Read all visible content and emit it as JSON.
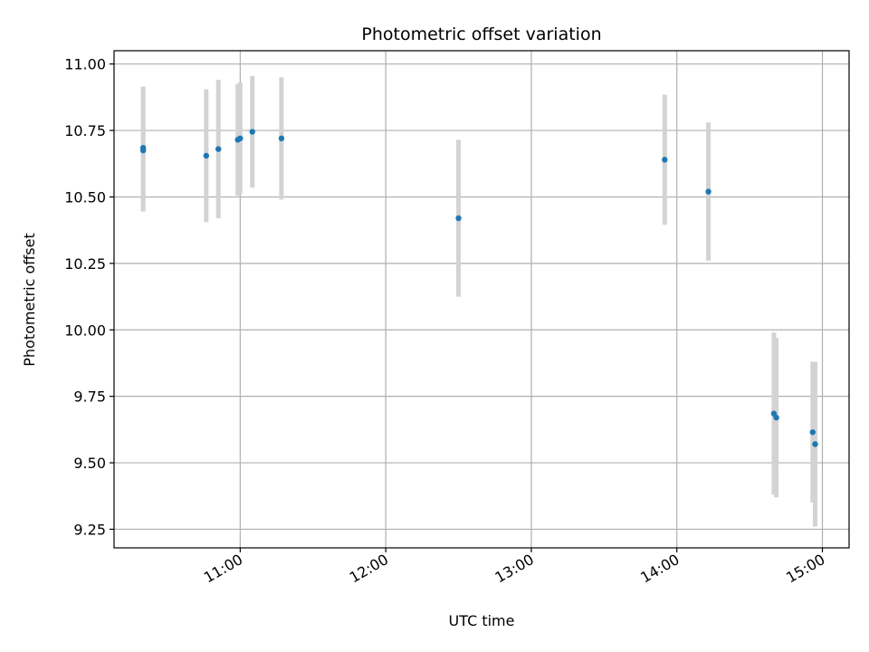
{
  "chart_data": {
    "type": "scatter",
    "title": "Photometric offset variation",
    "xlabel": "UTC time",
    "ylabel": "Photometric offset",
    "x_axis": "time (UTC)",
    "xlim": [
      "10:08",
      "15:11"
    ],
    "ylim": [
      9.18,
      11.05
    ],
    "yticks": [
      9.25,
      9.5,
      9.75,
      10.0,
      10.25,
      10.5,
      10.75,
      11.0
    ],
    "ytick_labels": [
      "9.25",
      "9.50",
      "9.75",
      "10.00",
      "10.25",
      "10.50",
      "10.75",
      "11.00"
    ],
    "xticks": [
      "11:00",
      "12:00",
      "13:00",
      "14:00",
      "15:00"
    ],
    "grid": true,
    "point_color": "#1f77b4",
    "errorbar_color": "#d3d3d3",
    "series": [
      {
        "points": [
          {
            "x": "10:20",
            "y": 10.685,
            "err": 0.23
          },
          {
            "x": "10:20",
            "y": 10.675,
            "err": 0.23
          },
          {
            "x": "10:46",
            "y": 10.655,
            "err": 0.25
          },
          {
            "x": "10:51",
            "y": 10.68,
            "err": 0.26
          },
          {
            "x": "10:59",
            "y": 10.715,
            "err": 0.21
          },
          {
            "x": "11:00",
            "y": 10.72,
            "err": 0.21
          },
          {
            "x": "11:05",
            "y": 10.745,
            "err": 0.21
          },
          {
            "x": "11:17",
            "y": 10.72,
            "err": 0.23
          },
          {
            "x": "12:30",
            "y": 10.42,
            "err": 0.295
          },
          {
            "x": "13:55",
            "y": 10.64,
            "err": 0.245
          },
          {
            "x": "14:13",
            "y": 10.52,
            "err": 0.26
          },
          {
            "x": "14:40",
            "y": 9.685,
            "err": 0.305
          },
          {
            "x": "14:41",
            "y": 9.67,
            "err": 0.3
          },
          {
            "x": "14:56",
            "y": 9.615,
            "err": 0.265
          },
          {
            "x": "14:57",
            "y": 9.57,
            "err": 0.31
          }
        ]
      }
    ]
  }
}
